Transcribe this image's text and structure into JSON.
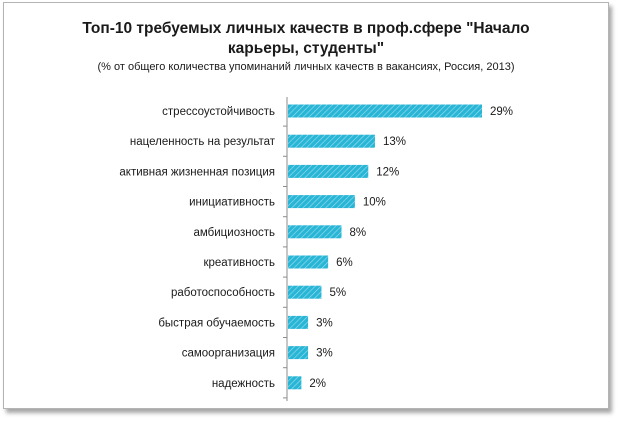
{
  "chart_data": {
    "type": "bar",
    "orientation": "horizontal",
    "title_lines": [
      "Топ-10 требуемых личных качеств в проф.сфере \"Начало",
      "карьеры, студенты\""
    ],
    "subtitle": "(% от общего количества упоминаний личных качеств в вакансиях, Россия, 2013)",
    "categories": [
      "стрессоустойчивость",
      "нацеленность на результат",
      "активная жизненная позиция",
      "инициативность",
      "амбициозность",
      "креативность",
      "работоспособность",
      "быстрая обучаемость",
      "самоорганизация",
      "надежность"
    ],
    "values": [
      29,
      13,
      12,
      10,
      8,
      6,
      5,
      3,
      3,
      2
    ],
    "data_labels": [
      "29%",
      "13%",
      "12%",
      "10%",
      "8%",
      "6%",
      "5%",
      "3%",
      "3%",
      "2%"
    ],
    "xlim": [
      0,
      30
    ],
    "xlabel": "",
    "ylabel": "",
    "grid": false,
    "legend": "none",
    "bar_color": "#29b6d6",
    "bar_pattern": "hatched"
  }
}
